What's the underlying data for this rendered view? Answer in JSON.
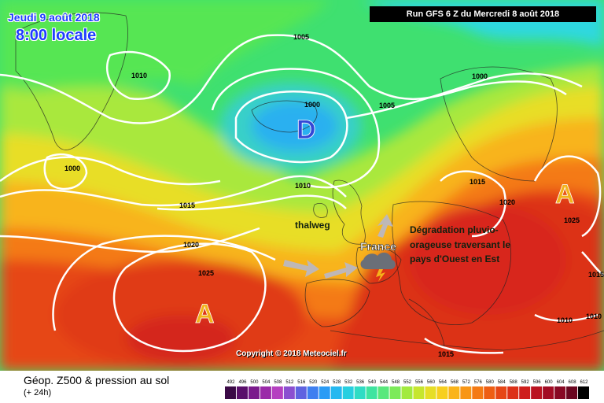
{
  "header": {
    "date": "Jeudi 9 août 2018",
    "hour": "8:00 locale",
    "run": "Run GFS 6 Z du Mercredi 8 août 2018"
  },
  "isobars": [
    "1010",
    "1005",
    "1000",
    "1005",
    "1000",
    "1000",
    "1010",
    "1015",
    "1015",
    "1020",
    "1020",
    "1025",
    "1025",
    "1015",
    "1010",
    "1015",
    "1010"
  ],
  "pressure_centers": [
    {
      "letter": "D",
      "kind": "low",
      "color": "#3347d6"
    },
    {
      "letter": "A",
      "kind": "high",
      "color": "#f2b21b"
    },
    {
      "letter": "A",
      "kind": "high",
      "color": "#f2b21b"
    }
  ],
  "annotations": {
    "thalweg": "thalweg",
    "france": "France",
    "degradation": [
      "Dégradation pluvio-",
      "orageuse traversant le",
      "pays d'Ouest en Est"
    ]
  },
  "copyright": "Copyright © 2018 Meteociel.fr",
  "legend": {
    "title": "Géop. Z500 & pression au sol",
    "subtitle": "(+ 24h)",
    "ticks": [
      "492",
      "496",
      "500",
      "504",
      "508",
      "512",
      "516",
      "520",
      "524",
      "528",
      "532",
      "536",
      "540",
      "544",
      "548",
      "552",
      "556",
      "560",
      "564",
      "568",
      "572",
      "576",
      "580",
      "584",
      "588",
      "592",
      "596",
      "600",
      "604",
      "608",
      "612"
    ],
    "colors": [
      "#3b0a46",
      "#5a0f6b",
      "#7a1a8c",
      "#9a2aa8",
      "#b540c0",
      "#8b4fd0",
      "#5f63e0",
      "#3f7ff0",
      "#2a9bf5",
      "#25b8f0",
      "#27cfe0",
      "#2fdcc4",
      "#3ee4a0",
      "#58e87c",
      "#7cea5a",
      "#a2ea3e",
      "#c6e62e",
      "#e6de26",
      "#f7cf1f",
      "#fab41a",
      "#f89616",
      "#f47a14",
      "#ee5e14",
      "#e64616",
      "#dc3018",
      "#ce1e1c",
      "#ba1220",
      "#a20b24",
      "#880824",
      "#6a0620",
      "#000000"
    ]
  }
}
